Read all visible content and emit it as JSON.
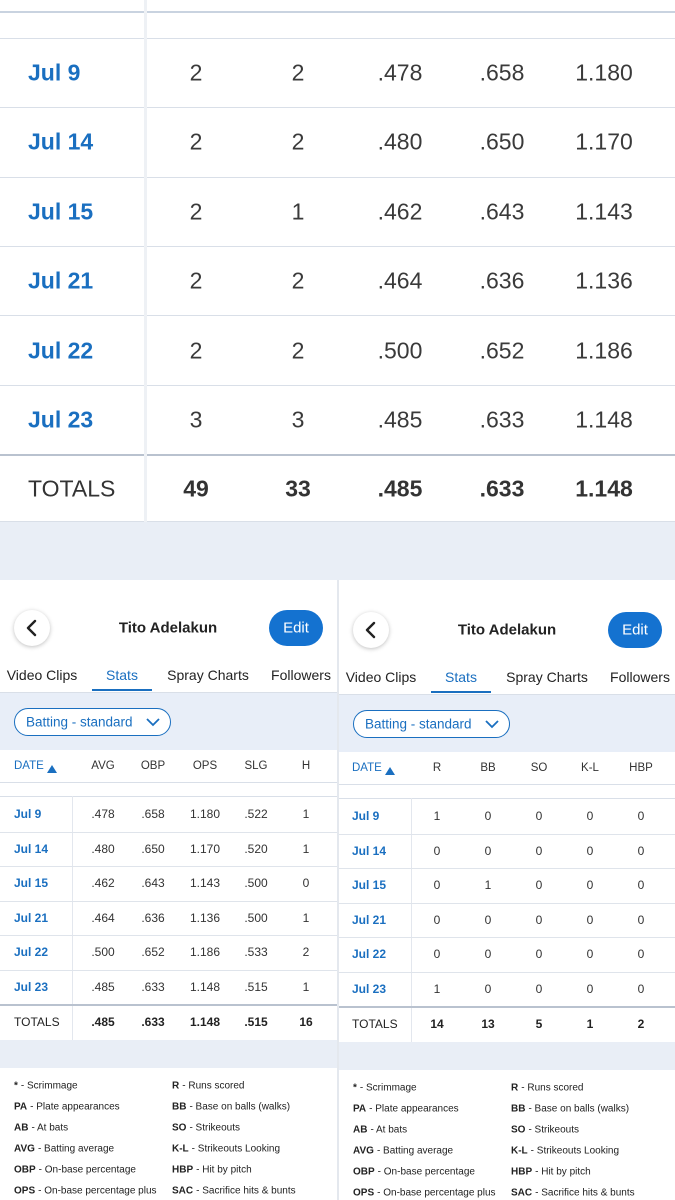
{
  "top_table": {
    "rows": [
      [
        "Jul 9",
        "2",
        "2",
        ".478",
        ".658",
        "1.180"
      ],
      [
        "Jul 14",
        "2",
        "2",
        ".480",
        ".650",
        "1.170"
      ],
      [
        "Jul 15",
        "2",
        "1",
        ".462",
        ".643",
        "1.143"
      ],
      [
        "Jul 21",
        "2",
        "2",
        ".464",
        ".636",
        "1.136"
      ],
      [
        "Jul 22",
        "2",
        "2",
        ".500",
        ".652",
        "1.186"
      ],
      [
        "Jul 23",
        "3",
        "3",
        ".485",
        ".633",
        "1.148"
      ]
    ],
    "totals": [
      "TOTALS",
      "49",
      "33",
      ".485",
      ".633",
      "1.148"
    ]
  },
  "panels": [
    {
      "title": "Tito Adelakun",
      "button": "Edit",
      "tabs": [
        "Video Clips",
        "Stats",
        "Spray Charts",
        "Followers"
      ],
      "dropdown": "Batting - standard",
      "columns": [
        "DATE",
        "AVG",
        "OBP",
        "OPS",
        "SLG",
        "H"
      ],
      "rows": [
        [
          "Jul 9",
          ".478",
          ".658",
          "1.180",
          ".522",
          "1"
        ],
        [
          "Jul 14",
          ".480",
          ".650",
          "1.170",
          ".520",
          "1"
        ],
        [
          "Jul 15",
          ".462",
          ".643",
          "1.143",
          ".500",
          "0"
        ],
        [
          "Jul 21",
          ".464",
          ".636",
          "1.136",
          ".500",
          "1"
        ],
        [
          "Jul 22",
          ".500",
          ".652",
          "1.186",
          ".533",
          "2"
        ],
        [
          "Jul 23",
          ".485",
          ".633",
          "1.148",
          ".515",
          "1"
        ]
      ],
      "totals": [
        "TOTALS",
        ".485",
        ".633",
        "1.148",
        ".515",
        "16"
      ],
      "legend_left": [
        {
          "abbr": "*",
          "text": "- Scrimmage"
        },
        {
          "abbr": "PA",
          "text": "- Plate appearances"
        },
        {
          "abbr": "AB",
          "text": "- At bats"
        },
        {
          "abbr": "AVG",
          "text": "- Batting average"
        },
        {
          "abbr": "OBP",
          "text": "- On-base percentage"
        },
        {
          "abbr": "OPS",
          "text": "- On-base percentage plus"
        }
      ],
      "legend_right": [
        {
          "abbr": "R",
          "text": "- Runs scored"
        },
        {
          "abbr": "BB",
          "text": "- Base on balls (walks)"
        },
        {
          "abbr": "SO",
          "text": "- Strikeouts"
        },
        {
          "abbr": "K-L",
          "text": "- Strikeouts Looking"
        },
        {
          "abbr": "HBP",
          "text": "- Hit by pitch"
        },
        {
          "abbr": "SAC",
          "text": "- Sacrifice hits & bunts"
        }
      ]
    },
    {
      "title": "Tito Adelakun",
      "button": "Edit",
      "tabs": [
        "Video Clips",
        "Stats",
        "Spray Charts",
        "Followers"
      ],
      "dropdown": "Batting - standard",
      "columns": [
        "DATE",
        "R",
        "BB",
        "SO",
        "K-L",
        "HBP"
      ],
      "rows": [
        [
          "Jul 9",
          "1",
          "0",
          "0",
          "0",
          "0"
        ],
        [
          "Jul 14",
          "0",
          "0",
          "0",
          "0",
          "0"
        ],
        [
          "Jul 15",
          "0",
          "1",
          "0",
          "0",
          "0"
        ],
        [
          "Jul 21",
          "0",
          "0",
          "0",
          "0",
          "0"
        ],
        [
          "Jul 22",
          "0",
          "0",
          "0",
          "0",
          "0"
        ],
        [
          "Jul 23",
          "1",
          "0",
          "0",
          "0",
          "0"
        ]
      ],
      "totals": [
        "TOTALS",
        "14",
        "13",
        "5",
        "1",
        "2"
      ],
      "legend_left": [
        {
          "abbr": "*",
          "text": "- Scrimmage"
        },
        {
          "abbr": "PA",
          "text": "- Plate appearances"
        },
        {
          "abbr": "AB",
          "text": "- At bats"
        },
        {
          "abbr": "AVG",
          "text": "- Batting average"
        },
        {
          "abbr": "OBP",
          "text": "- On-base percentage"
        },
        {
          "abbr": "OPS",
          "text": "- On-base percentage plus"
        }
      ],
      "legend_right": [
        {
          "abbr": "R",
          "text": "- Runs scored"
        },
        {
          "abbr": "BB",
          "text": "- Base on balls (walks)"
        },
        {
          "abbr": "SO",
          "text": "- Strikeouts"
        },
        {
          "abbr": "K-L",
          "text": "- Strikeouts Looking"
        },
        {
          "abbr": "HBP",
          "text": "- Hit by pitch"
        },
        {
          "abbr": "SAC",
          "text": "- Sacrifice hits & bunts"
        }
      ]
    }
  ]
}
